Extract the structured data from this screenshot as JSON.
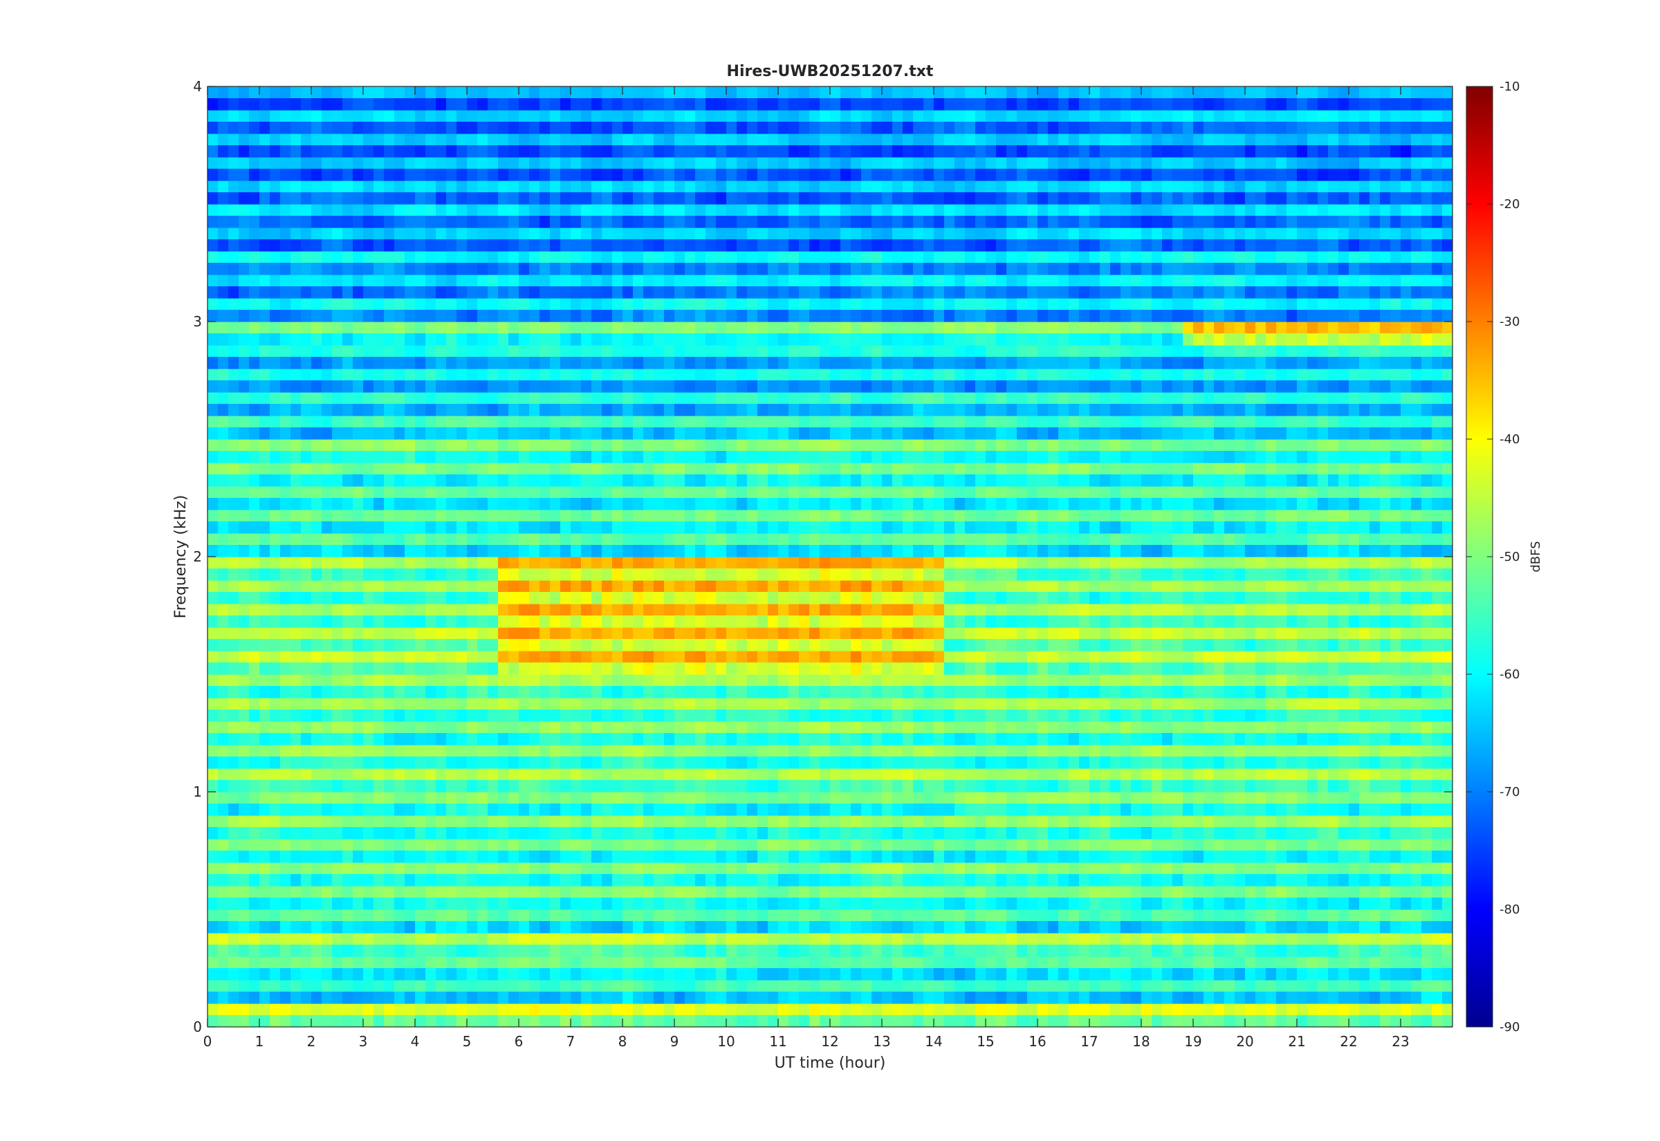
{
  "chart_data": {
    "type": "heatmap",
    "title": "Hires-UWB20251207.txt",
    "xlabel": "UT time (hour)",
    "ylabel": "Frequency (kHz)",
    "colorbar_label": "dBFS",
    "xlim": [
      0,
      24
    ],
    "ylim": [
      0,
      4
    ],
    "clim": [
      -90,
      -10
    ],
    "colormap": "jet",
    "x_ticks": [
      0,
      1,
      2,
      3,
      4,
      5,
      6,
      7,
      8,
      9,
      10,
      11,
      12,
      13,
      14,
      15,
      16,
      17,
      18,
      19,
      20,
      21,
      22,
      23
    ],
    "x_tick_labels": [
      "0",
      "1",
      "2",
      "3",
      "4",
      "5",
      "6",
      "7",
      "8",
      "9",
      "10",
      "11",
      "12",
      "13",
      "14",
      "15",
      "16",
      "17",
      "18",
      "19",
      "20",
      "21",
      "22",
      "23"
    ],
    "y_ticks": [
      0,
      1,
      2,
      3,
      4
    ],
    "y_tick_labels": [
      "0",
      "1",
      "2",
      "3",
      "4"
    ],
    "colorbar_ticks": [
      -90,
      -80,
      -70,
      -60,
      -50,
      -40,
      -30,
      -20,
      -10
    ],
    "colorbar_tick_labels": [
      "-90",
      "-80",
      "-70",
      "-60",
      "-50",
      "-40",
      "-30",
      "-20",
      "-10"
    ],
    "frequency_bands_khz": [
      0.05,
      0.15,
      0.25,
      0.35,
      0.45,
      0.55,
      0.65,
      0.75,
      0.85,
      0.95,
      1.05,
      1.15,
      1.25,
      1.35,
      1.45,
      1.55,
      1.65,
      1.75,
      1.85,
      1.95,
      2.05,
      2.15,
      2.25,
      2.35,
      2.45,
      2.55,
      2.65,
      2.75,
      2.85,
      2.95,
      3.05,
      3.15,
      3.25,
      3.35,
      3.45,
      3.55,
      3.65,
      3.75,
      3.85,
      3.95
    ],
    "band_level_dbfs": [
      -44,
      -55,
      -52,
      -45,
      -53,
      -50,
      -49,
      -50,
      -48,
      -50,
      -46,
      -48,
      -48,
      -47,
      -47,
      -44,
      -45,
      -46,
      -47,
      -46,
      -53,
      -51,
      -52,
      -50,
      -50,
      -55,
      -56,
      -58,
      -57,
      -50,
      -60,
      -61,
      -60,
      -63,
      -62,
      -63,
      -64,
      -64,
      -63,
      -65
    ],
    "hot_regions": [
      {
        "t_start": 5.5,
        "t_end": 14.2,
        "f_low": 1.5,
        "f_high": 2.0,
        "level_dbfs": -33
      },
      {
        "t_start": 18.7,
        "t_end": 24.0,
        "f_low": 2.9,
        "f_high": 3.0,
        "level_dbfs": -35
      },
      {
        "t_start": 0.0,
        "t_end": 24.0,
        "f_low": 0.0,
        "f_high": 0.1,
        "level_dbfs": -42
      }
    ]
  }
}
